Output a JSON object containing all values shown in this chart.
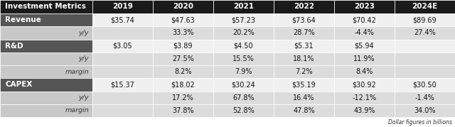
{
  "title": "Investment Metrics",
  "columns": [
    "2019",
    "2020",
    "2021",
    "2022",
    "2023",
    "2024E"
  ],
  "footer": "Dollar figures in billions",
  "rows": [
    {
      "label": "Revenue",
      "label_style": "bold_dark",
      "values": [
        "$35.74",
        "$47.63",
        "$57.23",
        "$73.64",
        "$70.42",
        "$89.69"
      ]
    },
    {
      "label": "y/y",
      "label_style": "italic_light",
      "values": [
        "",
        "33.3%",
        "20.2%",
        "28.7%",
        "-4.4%",
        "27.4%"
      ]
    },
    {
      "label": "R&D",
      "label_style": "bold_dark",
      "values": [
        "$3.05",
        "$3.89",
        "$4.50",
        "$5.31",
        "$5.94",
        ""
      ]
    },
    {
      "label": "y/y",
      "label_style": "italic_light",
      "values": [
        "",
        "27.5%",
        "15.5%",
        "18.1%",
        "11.9%",
        ""
      ]
    },
    {
      "label": "margin",
      "label_style": "italic_light",
      "values": [
        "",
        "8.2%",
        "7.9%",
        "7.2%",
        "8.4%",
        ""
      ]
    },
    {
      "label": "CAPEX",
      "label_style": "bold_dark",
      "values": [
        "$15.37",
        "$18.02",
        "$30.24",
        "$35.19",
        "$30.92",
        "$30.50"
      ]
    },
    {
      "label": "y/y",
      "label_style": "italic_light",
      "values": [
        "",
        "17.2%",
        "67.8%",
        "16.4%",
        "-12.1%",
        "-1.4%"
      ]
    },
    {
      "label": "margin",
      "label_style": "italic_light",
      "values": [
        "",
        "37.8%",
        "52.8%",
        "47.8%",
        "43.9%",
        "34.0%"
      ]
    }
  ],
  "header_bg": "#1a1a1a",
  "header_text_color": "#ffffff",
  "label_dark_bg": "#555555",
  "label_dark_text": "#ffffff",
  "label_light_bg": "#c8c8c8",
  "label_light_text": "#333333",
  "row_white_bg": "#f0f0f0",
  "row_light_bg": "#dcdcdc",
  "cell_text_color": "#111111",
  "value_font_size": 7.0,
  "header_font_size": 7.5,
  "label_bold_font_size": 7.5,
  "label_italic_font_size": 6.8
}
